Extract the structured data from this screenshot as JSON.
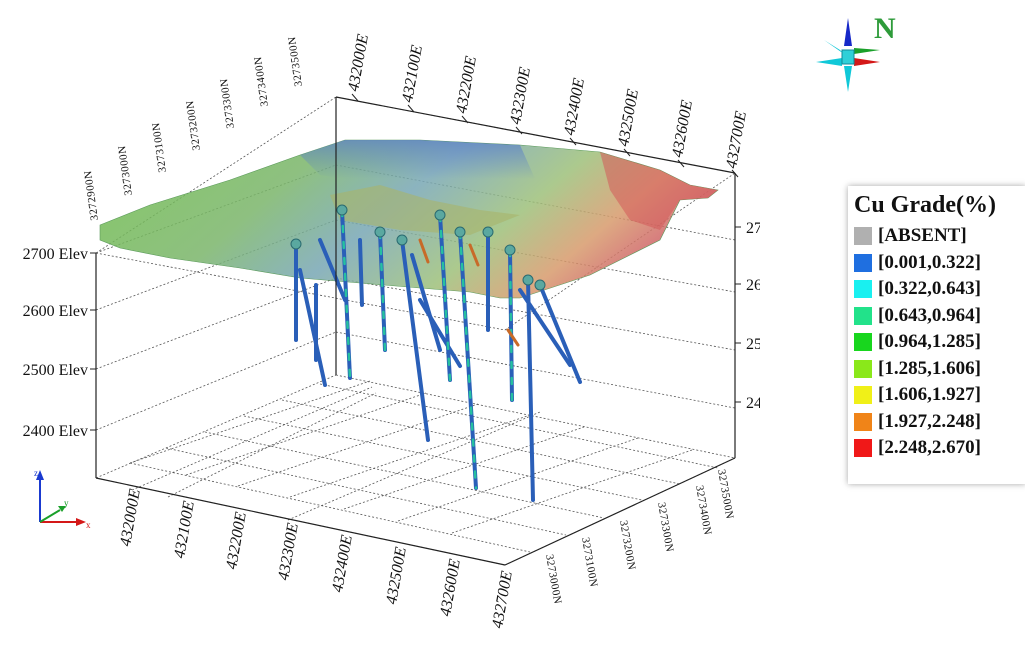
{
  "easting_labels": [
    "432000E",
    "432100E",
    "432200E",
    "432300E",
    "432400E",
    "432500E",
    "432600E",
    "432700E"
  ],
  "northing_labels": [
    "3272900N",
    "3273000N",
    "3273100N",
    "3273200N",
    "3273300N",
    "3273400N",
    "3273500N"
  ],
  "northing_labels_bottom": [
    "3273000N",
    "3273100N",
    "3273200N",
    "3273300N",
    "3273400N",
    "3273500N"
  ],
  "elevation_labels": [
    "2700 Elev",
    "2600 Elev",
    "2500 Elev",
    "2400 Elev"
  ],
  "north_arrow_label": "N",
  "triad": {
    "x": "x",
    "y": "y",
    "z": "z"
  },
  "legend": {
    "title": "Cu Grade(%)",
    "items": [
      {
        "label": "[ABSENT]",
        "color": "#b0b0b0"
      },
      {
        "label": "[0.001,0.322]",
        "color": "#1f6fe0"
      },
      {
        "label": "[0.322,0.643]",
        "color": "#19f0f0"
      },
      {
        "label": "[0.643,0.964]",
        "color": "#22e28a"
      },
      {
        "label": "[0.964,1.285]",
        "color": "#18d61e"
      },
      {
        "label": "[1.285,1.606]",
        "color": "#8ae81a"
      },
      {
        "label": "[1.606,1.927]",
        "color": "#f0f018"
      },
      {
        "label": "[1.927,2.248]",
        "color": "#f08418"
      },
      {
        "label": "[2.248,2.670]",
        "color": "#f01818"
      }
    ]
  }
}
